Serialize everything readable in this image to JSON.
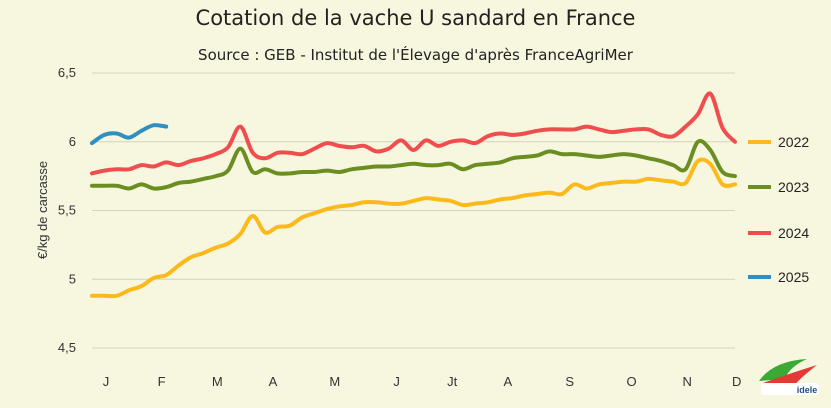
{
  "chart_data": {
    "type": "line",
    "title": "Cotation de la vache U sandard en France",
    "subtitle": "Source : GEB - Institut de l'Élevage d'après FranceAgriMer",
    "ylabel": "€/kg de carcasse",
    "xlabel": "",
    "ylim": [
      4.5,
      6.5
    ],
    "yticks": [
      "4,5",
      "5",
      "5,5",
      "6",
      "6,5"
    ],
    "ytick_values": [
      4.5,
      5.0,
      5.5,
      6.0,
      6.5
    ],
    "grid": true,
    "legend_position": "right",
    "x_unit": "week",
    "xlim": [
      1,
      53
    ],
    "month_labels": [
      "J",
      "F",
      "M",
      "A",
      "M",
      "J",
      "Jt",
      "A",
      "S",
      "O",
      "N",
      "D"
    ],
    "month_label_weeks": [
      1,
      5.5,
      10,
      14.5,
      19.5,
      24.5,
      29,
      33.5,
      38.5,
      43.5,
      48,
      52
    ],
    "series": [
      {
        "name": "2022",
        "color": "#fbb91b",
        "x": [
          1,
          2,
          3,
          4,
          5,
          6,
          7,
          8,
          9,
          10,
          11,
          12,
          13,
          14,
          15,
          16,
          17,
          18,
          19,
          20,
          21,
          22,
          23,
          24,
          25,
          26,
          27,
          28,
          29,
          30,
          31,
          32,
          33,
          34,
          35,
          36,
          37,
          38,
          39,
          40,
          41,
          42,
          43,
          44,
          45,
          46,
          47,
          48,
          49,
          50,
          51,
          52,
          53
        ],
        "values": [
          4.88,
          4.88,
          4.88,
          4.92,
          4.95,
          5.01,
          5.03,
          5.1,
          5.16,
          5.19,
          5.23,
          5.26,
          5.33,
          5.46,
          5.34,
          5.38,
          5.39,
          5.45,
          5.48,
          5.51,
          5.53,
          5.54,
          5.56,
          5.56,
          5.55,
          5.55,
          5.57,
          5.59,
          5.58,
          5.57,
          5.54,
          5.55,
          5.56,
          5.58,
          5.59,
          5.61,
          5.62,
          5.63,
          5.62,
          5.69,
          5.66,
          5.69,
          5.7,
          5.71,
          5.71,
          5.73,
          5.72,
          5.71,
          5.7,
          5.86,
          5.84,
          5.69,
          5.69
        ]
      },
      {
        "name": "2023",
        "color": "#6b8e23",
        "x": [
          1,
          2,
          3,
          4,
          5,
          6,
          7,
          8,
          9,
          10,
          11,
          12,
          13,
          14,
          15,
          16,
          17,
          18,
          19,
          20,
          21,
          22,
          23,
          24,
          25,
          26,
          27,
          28,
          29,
          30,
          31,
          32,
          33,
          34,
          35,
          36,
          37,
          38,
          39,
          40,
          41,
          42,
          43,
          44,
          45,
          46,
          47,
          48,
          49,
          50,
          51,
          52,
          53
        ],
        "values": [
          5.68,
          5.68,
          5.68,
          5.66,
          5.69,
          5.66,
          5.67,
          5.7,
          5.71,
          5.73,
          5.75,
          5.79,
          5.95,
          5.78,
          5.8,
          5.77,
          5.77,
          5.78,
          5.78,
          5.79,
          5.78,
          5.8,
          5.81,
          5.82,
          5.82,
          5.83,
          5.84,
          5.83,
          5.83,
          5.84,
          5.8,
          5.83,
          5.84,
          5.85,
          5.88,
          5.89,
          5.9,
          5.93,
          5.91,
          5.91,
          5.9,
          5.89,
          5.9,
          5.91,
          5.9,
          5.88,
          5.86,
          5.83,
          5.8,
          6.0,
          5.94,
          5.78,
          5.75
        ]
      },
      {
        "name": "2024",
        "color": "#f04e4e",
        "x": [
          1,
          2,
          3,
          4,
          5,
          6,
          7,
          8,
          9,
          10,
          11,
          12,
          13,
          14,
          15,
          16,
          17,
          18,
          19,
          20,
          21,
          22,
          23,
          24,
          25,
          26,
          27,
          28,
          29,
          30,
          31,
          32,
          33,
          34,
          35,
          36,
          37,
          38,
          39,
          40,
          41,
          42,
          43,
          44,
          45,
          46,
          47,
          48,
          49,
          50,
          51,
          52,
          53
        ],
        "values": [
          5.77,
          5.79,
          5.8,
          5.8,
          5.83,
          5.82,
          5.85,
          5.83,
          5.86,
          5.88,
          5.91,
          5.96,
          6.11,
          5.92,
          5.88,
          5.92,
          5.92,
          5.91,
          5.95,
          5.99,
          5.97,
          5.96,
          5.97,
          5.93,
          5.95,
          6.01,
          5.94,
          6.01,
          5.97,
          6.0,
          6.01,
          5.99,
          6.04,
          6.06,
          6.05,
          6.06,
          6.08,
          6.09,
          6.09,
          6.09,
          6.11,
          6.09,
          6.07,
          6.08,
          6.09,
          6.09,
          6.05,
          6.04,
          6.11,
          6.2,
          6.35,
          6.1,
          6.0
        ]
      },
      {
        "name": "2025",
        "color": "#2f8fc0",
        "x": [
          1,
          2,
          3,
          4,
          5,
          6,
          7
        ],
        "values": [
          5.99,
          6.05,
          6.06,
          6.03,
          6.08,
          6.12,
          6.11
        ]
      }
    ]
  },
  "logo": {
    "text": "idele"
  }
}
